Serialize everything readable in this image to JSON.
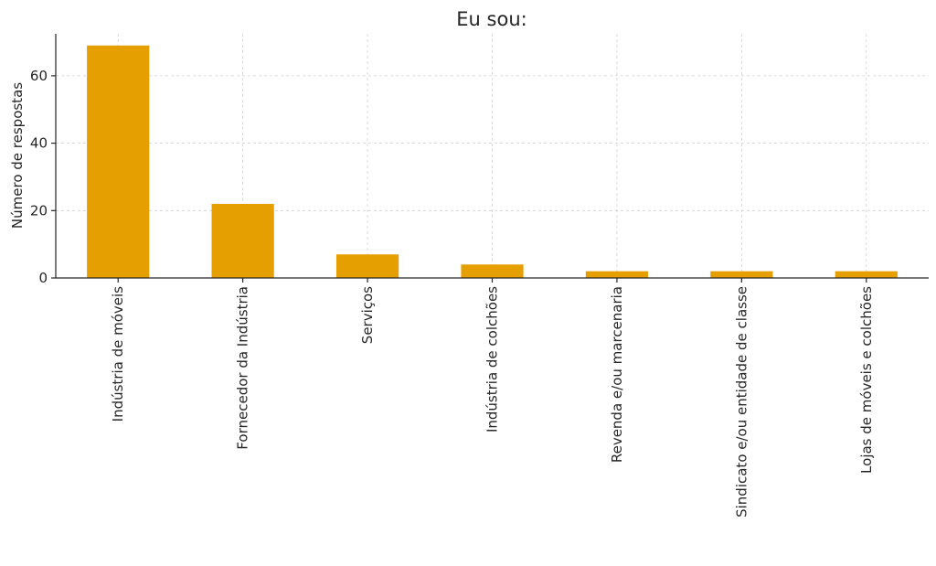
{
  "chart_data": {
    "type": "bar",
    "title": "Eu sou:",
    "xlabel": "",
    "ylabel": "Número de respostas",
    "categories": [
      "Indústria de móveis",
      "Fornecedor da Indústria",
      "Serviços",
      "Indústria de colchões",
      "Revenda e/ou marcenaria",
      "Sindicato e/ou entidade de classe",
      "Lojas de móveis e colchões"
    ],
    "values": [
      69,
      22,
      7,
      4,
      2,
      2,
      2
    ],
    "ylim": [
      0,
      72.45
    ],
    "yticks": [
      0,
      20,
      40,
      60
    ],
    "grid": true,
    "bar_color": "#E69F00",
    "grid_color": "#d0d0d0"
  }
}
